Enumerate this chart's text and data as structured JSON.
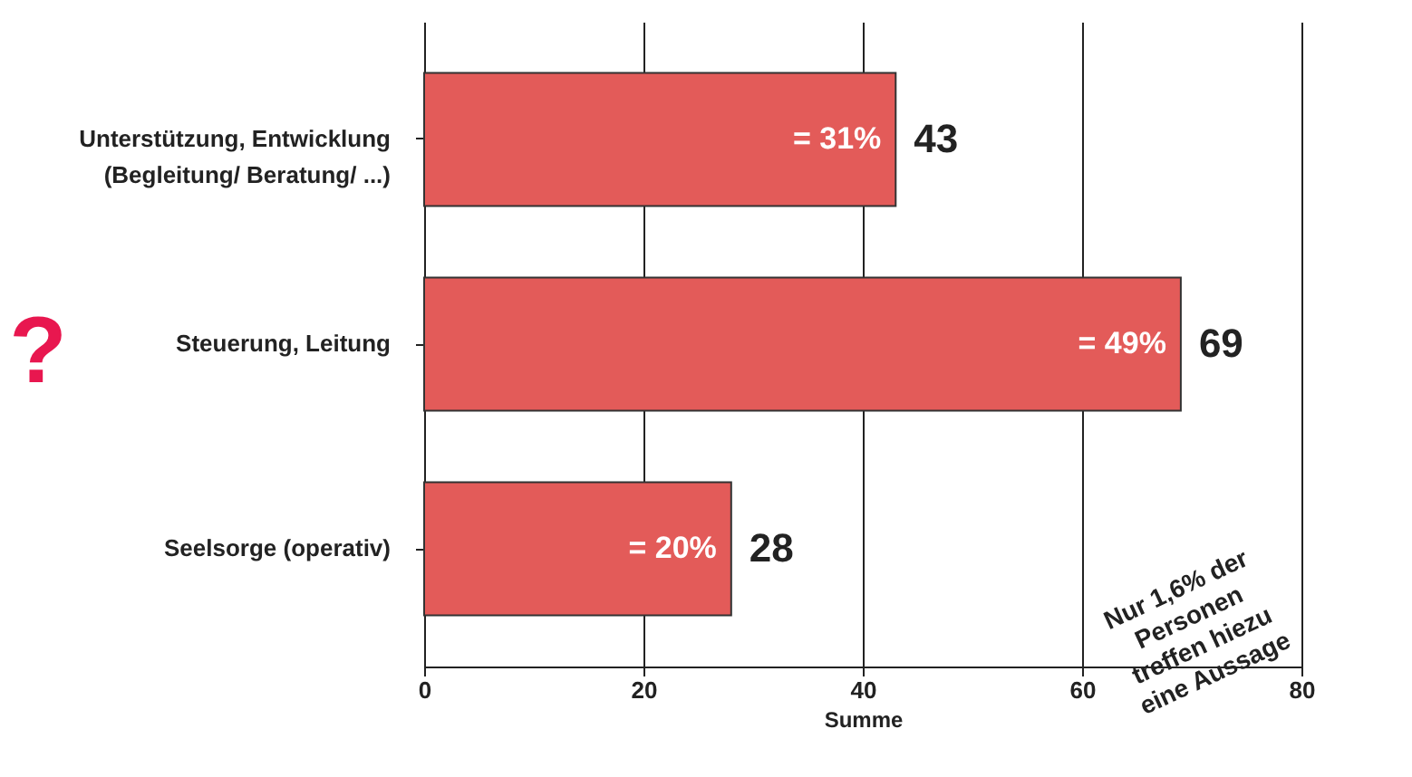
{
  "chart_data": {
    "type": "bar",
    "orientation": "horizontal",
    "categories": [
      "Unterstützung, Entwicklung\n(Begleitung/ Beratung/ ...)",
      "Steuerung, Leitung",
      "Seelsorge (operativ)"
    ],
    "values": [
      43,
      69,
      28
    ],
    "data_labels": true,
    "color": "#e35b59",
    "xlabel": "Summe",
    "xlim": [
      0,
      80
    ],
    "xticks": [
      0,
      20,
      40,
      60,
      80
    ],
    "grid": "x",
    "annotations": [
      "?",
      "Nur 1,6% der\nPersonen\ntreffen hiezu\neine Aussage",
      {
        "text": "= 31%",
        "x": 43,
        "y": "Unterstützung, Entwicklung\n(Begleitung/ Beratung/ ...)"
      },
      {
        "text": "= 49%",
        "x": 69,
        "y": "Steuerung, Leitung"
      },
      {
        "text": "= 20%",
        "x": 28,
        "y": "Seelsorge (operativ)"
      }
    ]
  }
}
